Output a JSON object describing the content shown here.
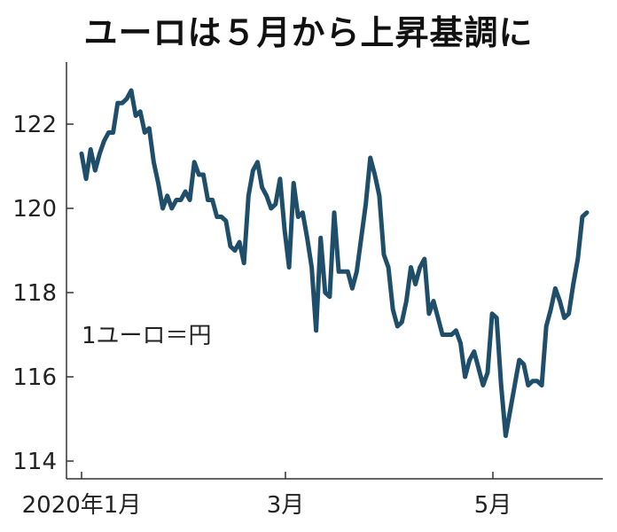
{
  "chart_data": {
    "type": "line",
    "title": "ユーロは５月から上昇基調に",
    "unit_note": "1ユーロ＝円",
    "x_ticks": [
      "2020年1月",
      "3月",
      "5月"
    ],
    "y_ticks": [
      "122",
      "120",
      "118",
      "116",
      "114"
    ],
    "ylim": [
      114,
      123.5
    ],
    "grid": false,
    "series": [
      {
        "color": "#1f4e6b",
        "values": [
          121.3,
          120.7,
          121.4,
          120.9,
          121.3,
          121.6,
          121.8,
          121.8,
          122.5,
          122.5,
          122.6,
          122.8,
          122.2,
          122.3,
          121.8,
          121.9,
          121.1,
          120.6,
          120.0,
          120.3,
          120.0,
          120.2,
          120.2,
          120.4,
          120.2,
          121.1,
          120.8,
          120.8,
          120.2,
          120.2,
          119.8,
          119.8,
          119.7,
          119.1,
          119.0,
          119.2,
          118.7,
          120.3,
          120.9,
          121.1,
          120.5,
          120.3,
          120.0,
          120.1,
          120.7,
          119.5,
          118.6,
          120.6,
          119.8,
          119.9,
          119.3,
          118.6,
          117.1,
          119.3,
          118.0,
          117.9,
          119.9,
          118.5,
          118.5,
          118.5,
          118.1,
          118.5,
          119.3,
          120.1,
          121.2,
          120.8,
          120.3,
          118.9,
          118.6,
          117.6,
          117.2,
          117.3,
          117.8,
          118.6,
          118.2,
          118.6,
          118.8,
          117.5,
          117.8,
          117.4,
          117.0,
          117.0,
          117.0,
          117.1,
          116.8,
          116.0,
          116.4,
          116.6,
          116.2,
          115.8,
          116.1,
          117.5,
          117.4,
          115.8,
          114.6,
          115.2,
          115.8,
          116.4,
          116.3,
          115.8,
          115.9,
          115.9,
          115.8,
          117.2,
          117.6,
          118.1,
          117.8,
          117.4,
          117.5,
          118.2,
          118.8,
          119.8,
          119.9
        ]
      }
    ]
  }
}
